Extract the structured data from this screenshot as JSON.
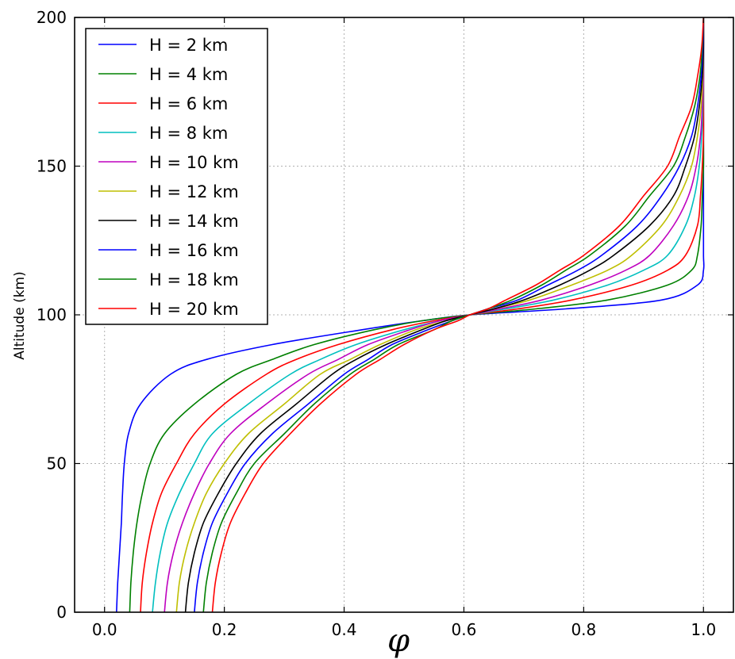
{
  "chart_data": {
    "type": "line",
    "title": "",
    "xlabel": "φ",
    "ylabel": "Altitude (km)",
    "xlim": [
      -0.05,
      1.05
    ],
    "ylim": [
      0,
      200
    ],
    "x_ticks": [
      0.0,
      0.2,
      0.4,
      0.6,
      0.8,
      1.0
    ],
    "x_tick_labels": [
      "0.0",
      "0.2",
      "0.4",
      "0.6",
      "0.8",
      "1.0"
    ],
    "y_ticks": [
      0,
      50,
      100,
      150,
      200
    ],
    "y_tick_labels": [
      "0",
      "50",
      "100",
      "150",
      "200"
    ],
    "grid": true,
    "legend_position": "top-left",
    "y": [
      0,
      10,
      20,
      30,
      40,
      50,
      60,
      70,
      80,
      85,
      90,
      95,
      98,
      100,
      102,
      105,
      110,
      115,
      120,
      130,
      140,
      150,
      160,
      170,
      180,
      190,
      200
    ],
    "series": [
      {
        "name": "H = 2 km",
        "color": "#0000ff",
        "x": [
          0.02,
          0.022,
          0.025,
          0.028,
          0.03,
          0.033,
          0.04,
          0.06,
          0.11,
          0.17,
          0.28,
          0.43,
          0.53,
          0.61,
          0.77,
          0.93,
          0.99,
          1.0,
          1.0,
          1.0,
          1.0,
          1.0,
          1.0,
          1.0,
          1.0,
          1.0,
          1.0
        ]
      },
      {
        "name": "H = 4 km",
        "color": "#008000",
        "x": [
          0.042,
          0.044,
          0.048,
          0.054,
          0.063,
          0.076,
          0.1,
          0.15,
          0.22,
          0.28,
          0.35,
          0.45,
          0.53,
          0.61,
          0.72,
          0.84,
          0.94,
          0.98,
          0.99,
          0.996,
          0.998,
          1.0,
          1.0,
          1.0,
          1.0,
          1.0,
          1.0
        ]
      },
      {
        "name": "H = 6 km",
        "color": "#ff0000",
        "x": [
          0.06,
          0.063,
          0.07,
          0.08,
          0.095,
          0.12,
          0.15,
          0.2,
          0.27,
          0.32,
          0.39,
          0.48,
          0.55,
          0.61,
          0.69,
          0.78,
          0.88,
          0.94,
          0.97,
          0.99,
          0.995,
          0.998,
          1.0,
          1.0,
          1.0,
          1.0,
          1.0
        ]
      },
      {
        "name": "H = 8 km",
        "color": "#00bfbf",
        "x": [
          0.08,
          0.085,
          0.093,
          0.105,
          0.125,
          0.15,
          0.18,
          0.24,
          0.31,
          0.36,
          0.42,
          0.5,
          0.56,
          0.61,
          0.67,
          0.75,
          0.84,
          0.9,
          0.94,
          0.97,
          0.985,
          0.993,
          0.997,
          0.999,
          1.0,
          1.0,
          1.0
        ]
      },
      {
        "name": "H = 10 km",
        "color": "#bf00bf",
        "x": [
          0.1,
          0.105,
          0.115,
          0.13,
          0.15,
          0.175,
          0.21,
          0.27,
          0.34,
          0.39,
          0.44,
          0.51,
          0.56,
          0.61,
          0.66,
          0.73,
          0.81,
          0.87,
          0.91,
          0.95,
          0.975,
          0.988,
          0.995,
          0.998,
          1.0,
          1.0,
          1.0
        ]
      },
      {
        "name": "H = 12 km",
        "color": "#bfbf00",
        "x": [
          0.12,
          0.125,
          0.135,
          0.15,
          0.17,
          0.2,
          0.24,
          0.3,
          0.36,
          0.41,
          0.46,
          0.52,
          0.57,
          0.61,
          0.65,
          0.71,
          0.78,
          0.84,
          0.88,
          0.93,
          0.96,
          0.98,
          0.99,
          0.996,
          0.999,
          1.0,
          1.0
        ]
      },
      {
        "name": "H = 14 km",
        "color": "#000000",
        "x": [
          0.135,
          0.14,
          0.15,
          0.165,
          0.19,
          0.22,
          0.26,
          0.32,
          0.38,
          0.42,
          0.47,
          0.53,
          0.57,
          0.61,
          0.65,
          0.7,
          0.76,
          0.81,
          0.85,
          0.91,
          0.95,
          0.97,
          0.985,
          0.993,
          0.998,
          1.0,
          1.0
        ]
      },
      {
        "name": "H = 16 km",
        "color": "#0000ff",
        "x": [
          0.15,
          0.155,
          0.165,
          0.18,
          0.205,
          0.235,
          0.28,
          0.34,
          0.4,
          0.44,
          0.48,
          0.54,
          0.58,
          0.61,
          0.64,
          0.69,
          0.74,
          0.79,
          0.83,
          0.89,
          0.93,
          0.96,
          0.98,
          0.99,
          0.996,
          0.999,
          1.0
        ]
      },
      {
        "name": "H = 18 km",
        "color": "#008000",
        "x": [
          0.165,
          0.17,
          0.18,
          0.195,
          0.22,
          0.25,
          0.3,
          0.35,
          0.41,
          0.45,
          0.49,
          0.55,
          0.58,
          0.61,
          0.64,
          0.68,
          0.73,
          0.77,
          0.81,
          0.87,
          0.91,
          0.95,
          0.97,
          0.985,
          0.994,
          0.998,
          1.0
        ]
      },
      {
        "name": "H = 20 km",
        "color": "#ff0000",
        "x": [
          0.18,
          0.185,
          0.195,
          0.21,
          0.235,
          0.265,
          0.31,
          0.36,
          0.42,
          0.46,
          0.5,
          0.55,
          0.59,
          0.61,
          0.64,
          0.67,
          0.72,
          0.76,
          0.8,
          0.86,
          0.9,
          0.94,
          0.96,
          0.98,
          0.99,
          0.997,
          1.0
        ]
      }
    ]
  }
}
